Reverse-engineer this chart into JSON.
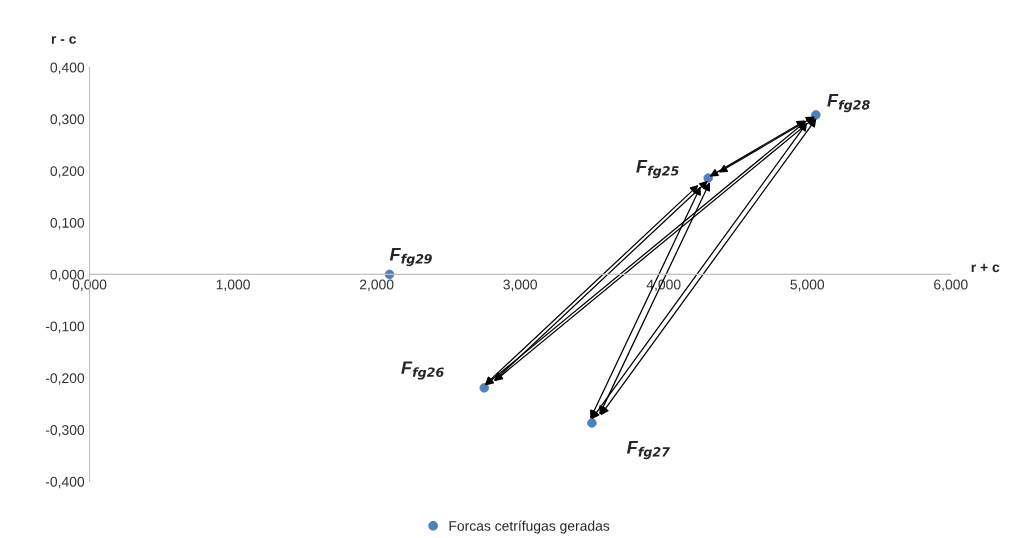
{
  "chart_data": {
    "type": "scatter",
    "xlabel": "r + c",
    "ylabel": "r - c",
    "x": [
      2.09,
      2.75,
      3.5,
      4.31,
      5.06
    ],
    "series": [
      {
        "name": "Forcas cetrífugas geradas",
        "color": "#4f81bd",
        "values": [
          0.0,
          -0.219,
          -0.287,
          0.186,
          0.308
        ]
      }
    ],
    "xlim": [
      0,
      6
    ],
    "ylim": [
      -0.4,
      0.4
    ],
    "xticks": [
      {
        "value": 0,
        "label": "0,000"
      },
      {
        "value": 1,
        "label": "1,000"
      },
      {
        "value": 2,
        "label": "2,000"
      },
      {
        "value": 3,
        "label": "3,000"
      },
      {
        "value": 4,
        "label": "4,000"
      },
      {
        "value": 5,
        "label": "5,000"
      },
      {
        "value": 6,
        "label": "6,000"
      }
    ],
    "yticks": [
      {
        "value": -0.4,
        "label": "-0,400"
      },
      {
        "value": -0.3,
        "label": "-0,300"
      },
      {
        "value": -0.2,
        "label": "-0,200"
      },
      {
        "value": -0.1,
        "label": "-0,100"
      },
      {
        "value": 0,
        "label": "0,000"
      },
      {
        "value": 0.1,
        "label": "0,100"
      },
      {
        "value": 0.2,
        "label": "0,200"
      },
      {
        "value": 0.3,
        "label": "0,300"
      },
      {
        "value": 0.4,
        "label": "0,400"
      }
    ],
    "annotations": [
      {
        "text": "F$_{fg29}$",
        "x": 2.09,
        "y": 0.0
      },
      {
        "text": "F$_{fg26}$",
        "x": 2.75,
        "y": -0.219
      },
      {
        "text": "F$_{fg27}$",
        "x": 3.5,
        "y": -0.287
      },
      {
        "text": "F$_{fg25}$",
        "x": 4.31,
        "y": 0.186
      },
      {
        "text": "F$_{fg28}$",
        "x": 5.06,
        "y": 0.308
      }
    ],
    "marker": "circle",
    "grid": false,
    "legend": "bottom"
  }
}
